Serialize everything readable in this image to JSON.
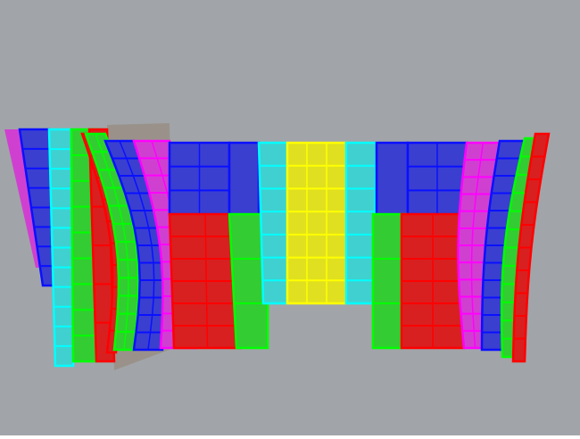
{
  "viewport": {
    "background": "#a1a5a9",
    "grid_stroke": "#000000",
    "panel_colors": {
      "blue": "#3a3fd0",
      "blue_edge": "#0a10ff",
      "red": "#d82020",
      "red_edge": "#ff0000",
      "green": "#33cc33",
      "green_edge": "#00ff00",
      "magenta": "#d040d0",
      "magenta_edge": "#ff00ff",
      "cyan": "#40d0d0",
      "cyan_edge": "#00ffff",
      "yellow": "#e0e020",
      "yellow_edge": "#ffff00",
      "taupe": "#9a928a"
    }
  }
}
